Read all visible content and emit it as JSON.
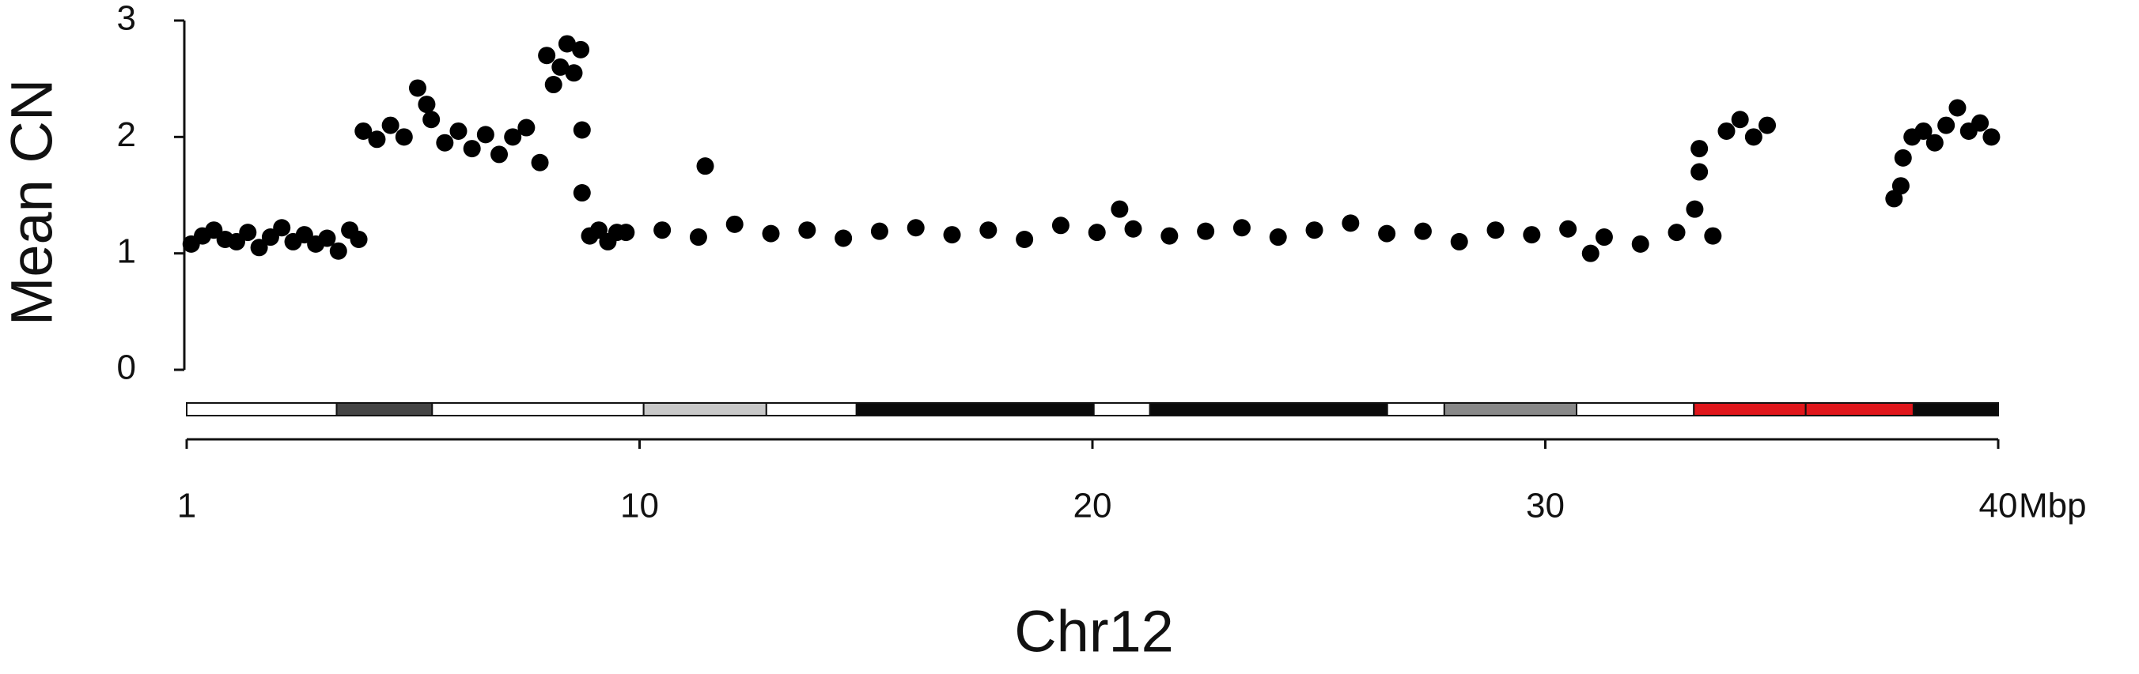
{
  "chart_data": {
    "type": "scatter",
    "x_label": "Chr12",
    "y_label": "Mean CN",
    "x_unit": "Mbp",
    "xlim": [
      0,
      40
    ],
    "ylim": [
      0,
      3
    ],
    "xticks": [
      {
        "value": 1e-06,
        "label": "1"
      },
      10,
      20,
      30,
      40
    ],
    "yticks": [
      0,
      1,
      2,
      3
    ],
    "series": [
      {
        "color": "#000000",
        "x": [
          0.1,
          0.35,
          0.6,
          0.85,
          1.1,
          1.35,
          1.6,
          1.85,
          2.1,
          2.35,
          2.6,
          2.85,
          3.1,
          3.35,
          3.6,
          3.8,
          3.9,
          4.2,
          4.5,
          4.8,
          5.1,
          5.3,
          5.4,
          5.7,
          6.0,
          6.3,
          6.6,
          6.9,
          7.2,
          7.5,
          7.8,
          7.95,
          8.1,
          8.25,
          8.4,
          8.55,
          8.7,
          8.73,
          8.73,
          8.9,
          9.1,
          9.3,
          9.5,
          9.7,
          10.5,
          11.3,
          12.1,
          12.9,
          13.7,
          14.5,
          15.3,
          16.1,
          16.9,
          17.7,
          18.5,
          19.3,
          20.1,
          20.9,
          21.7,
          22.5,
          23.3,
          24.1,
          24.9,
          25.7,
          26.5,
          27.3,
          28.1,
          28.9,
          29.7,
          30.5,
          31.0,
          31.3,
          32.1,
          32.9,
          33.7,
          11.45,
          20.6,
          33.4,
          33.4,
          33.3,
          34.0,
          34.3,
          34.6,
          34.9,
          37.7,
          37.85,
          37.9,
          38.1,
          38.35,
          38.6,
          38.85,
          39.1,
          39.35,
          39.6,
          39.85
        ],
        "values": [
          1.08,
          1.15,
          1.2,
          1.12,
          1.1,
          1.18,
          1.05,
          1.14,
          1.22,
          1.1,
          1.16,
          1.08,
          1.13,
          1.02,
          1.2,
          1.12,
          2.05,
          1.98,
          2.1,
          2.0,
          2.42,
          2.28,
          2.15,
          1.95,
          2.05,
          1.9,
          2.02,
          1.85,
          2.0,
          2.08,
          1.78,
          2.7,
          2.45,
          2.6,
          2.8,
          2.55,
          2.75,
          2.06,
          1.52,
          1.15,
          1.2,
          1.1,
          1.18,
          1.18,
          1.2,
          1.14,
          1.25,
          1.17,
          1.2,
          1.13,
          1.19,
          1.22,
          1.16,
          1.2,
          1.12,
          1.24,
          1.18,
          1.21,
          1.15,
          1.19,
          1.22,
          1.14,
          1.2,
          1.26,
          1.17,
          1.19,
          1.1,
          1.2,
          1.16,
          1.21,
          1.0,
          1.14,
          1.08,
          1.18,
          1.15,
          1.75,
          1.38,
          1.9,
          1.7,
          1.38,
          2.05,
          2.15,
          2.0,
          2.1,
          1.47,
          1.58,
          1.82,
          2.0,
          2.05,
          1.95,
          2.1,
          2.25,
          2.05,
          2.12,
          2.0
        ]
      }
    ],
    "bands": [
      {
        "start": 0,
        "end": 3.31,
        "color": "#ffffff"
      },
      {
        "start": 3.31,
        "end": 5.42,
        "color": "#444444"
      },
      {
        "start": 5.42,
        "end": 10.09,
        "color": "#ffffff"
      },
      {
        "start": 10.09,
        "end": 12.8,
        "color": "#c8c8c8"
      },
      {
        "start": 12.8,
        "end": 14.79,
        "color": "#ffffff"
      },
      {
        "start": 14.79,
        "end": 20.03,
        "color": "#0a0a0a"
      },
      {
        "start": 20.03,
        "end": 21.27,
        "color": "#ffffff"
      },
      {
        "start": 21.27,
        "end": 26.51,
        "color": "#0a0a0a"
      },
      {
        "start": 26.51,
        "end": 27.77,
        "color": "#ffffff"
      },
      {
        "start": 27.77,
        "end": 30.69,
        "color": "#888888"
      },
      {
        "start": 30.69,
        "end": 33.28,
        "color": "#ffffff"
      },
      {
        "start": 33.28,
        "end": 35.75,
        "color": "#e0161b"
      },
      {
        "start": 35.75,
        "end": 38.13,
        "color": "#e0161b"
      },
      {
        "start": 38.13,
        "end": 40,
        "color": "#0a0a0a"
      }
    ]
  }
}
